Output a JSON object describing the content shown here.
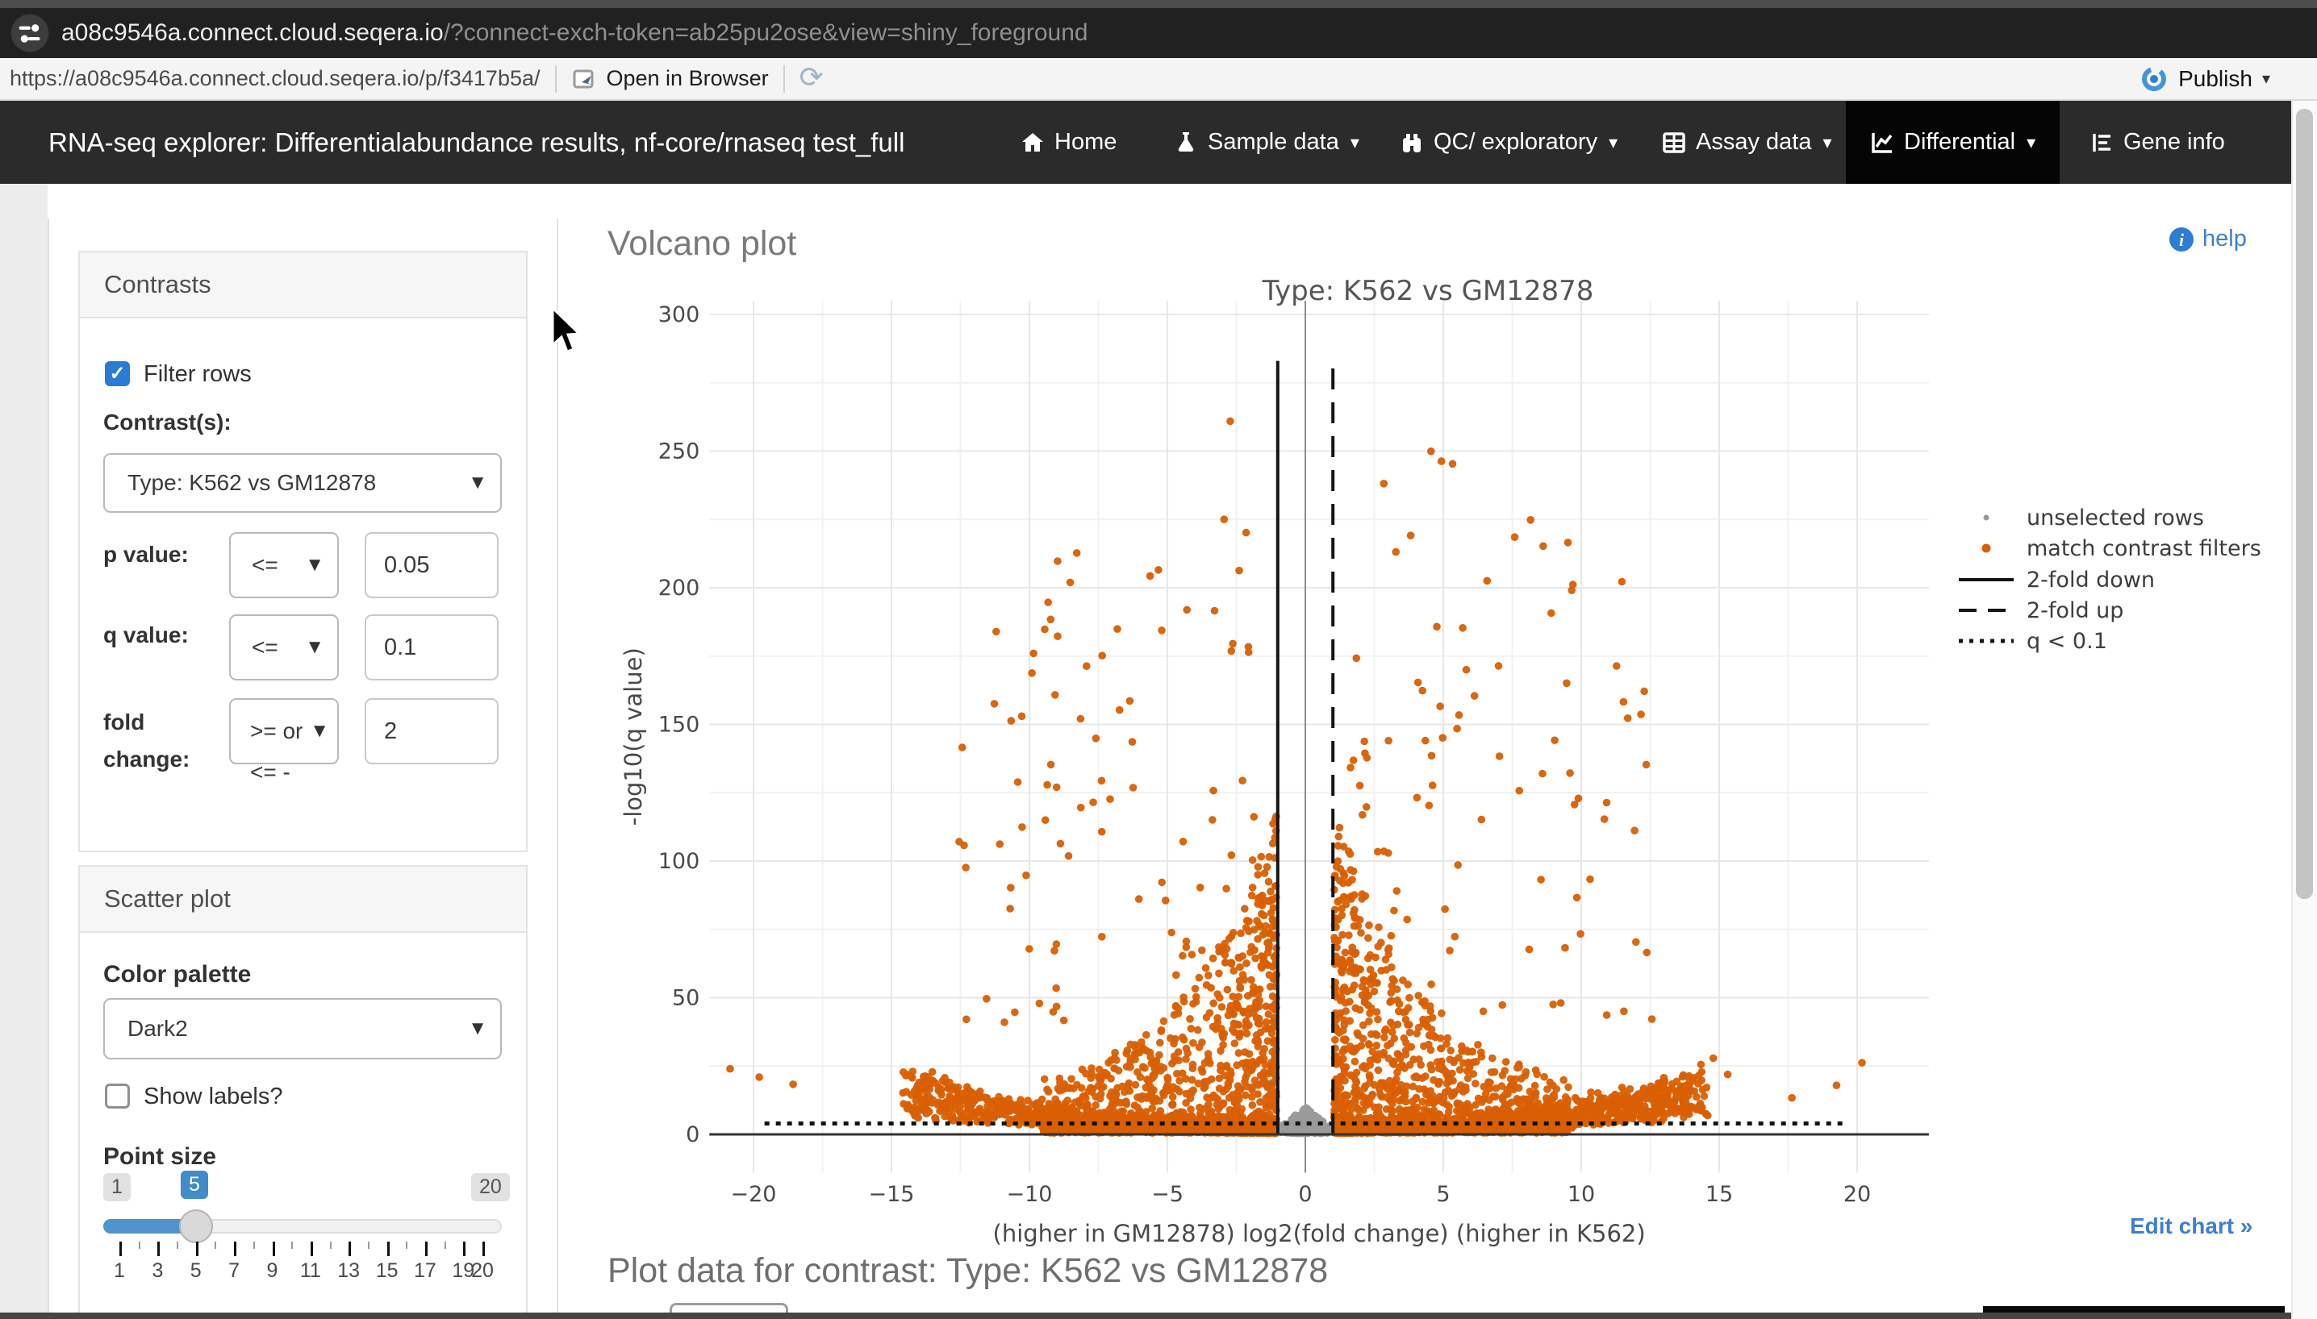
{
  "browser": {
    "url_host": "a08c9546a.connect.cloud.seqera.io",
    "url_params": "/?connect-exch-token=ab25pu2ose&view=shiny_foreground",
    "toolbar_url": "https://a08c9546a.connect.cloud.seqera.io/p/f3417b5a/",
    "open_in_browser_label": "Open in Browser",
    "publish_label": "Publish"
  },
  "navbar": {
    "title": "RNA-seq explorer: Differentialabundance results, nf-core/rnaseq test_full",
    "items": [
      {
        "label": "Home",
        "icon": "home-icon",
        "dropdown": false,
        "active": false
      },
      {
        "label": "Sample data",
        "icon": "flask-icon",
        "dropdown": true,
        "active": false
      },
      {
        "label": "QC/ exploratory",
        "icon": "binoculars-icon",
        "dropdown": true,
        "active": false
      },
      {
        "label": "Assay data",
        "icon": "table-icon",
        "dropdown": true,
        "active": false
      },
      {
        "label": "Differential",
        "icon": "chart-line-icon",
        "dropdown": true,
        "active": true
      },
      {
        "label": "Gene info",
        "icon": "list-icon",
        "dropdown": false,
        "active": false
      }
    ]
  },
  "sidebar": {
    "contrasts": {
      "title": "Contrasts",
      "filter_rows_label": "Filter rows",
      "filter_rows_checked": true,
      "contrast_label": "Contrast(s):",
      "contrast_value": "Type: K562 vs GM12878",
      "p_label": "p value:",
      "p_op": "<=",
      "p_value": "0.05",
      "q_label": "q value:",
      "q_op": "<=",
      "q_value": "0.1",
      "fc_label_line1": "fold",
      "fc_label_line2": "change:",
      "fc_op_line1": ">= or",
      "fc_op_line2": "<= -",
      "fc_value": "2"
    },
    "scatter": {
      "title": "Scatter plot",
      "palette_label": "Color palette",
      "palette_value": "Dark2",
      "show_labels_label": "Show labels?",
      "show_labels_checked": false,
      "point_size_label": "Point size",
      "slider": {
        "min": 1,
        "max": 20,
        "value": 5,
        "tick_label_values": [
          1,
          3,
          5,
          7,
          9,
          11,
          13,
          15,
          17,
          19,
          20
        ]
      }
    }
  },
  "main": {
    "heading": "Volcano plot",
    "help_label": "help",
    "edit_chart_label": "Edit chart »",
    "plot_data_heading": "Plot data for contrast: Type: K562 vs GM12878"
  },
  "chart_data": {
    "type": "scatter",
    "title": "Type: K562 vs GM12878",
    "xlabel": "(higher in GM12878)  log2(fold change)  (higher in K562)",
    "ylabel": "-log10(q value)",
    "xlim": [
      -21.6,
      22.6
    ],
    "ylim": [
      -14,
      305
    ],
    "xticks": [
      -20,
      -15,
      -10,
      -5,
      0,
      5,
      10,
      15,
      20
    ],
    "yticks": [
      0,
      50,
      100,
      150,
      200,
      250,
      300
    ],
    "grid": true,
    "legend_position": "right",
    "legend": [
      {
        "kind": "point",
        "label": "unselected rows",
        "color": "#9a9a9a",
        "size": "small"
      },
      {
        "kind": "point",
        "label": "match contrast filters",
        "color": "#d95f02",
        "size": "large"
      },
      {
        "kind": "line",
        "label": "2-fold down",
        "color": "#141414",
        "dash": "solid"
      },
      {
        "kind": "line",
        "label": "2-fold up",
        "color": "#141414",
        "dash": "dashed"
      },
      {
        "kind": "line",
        "label": "q < 0.1",
        "color": "#141414",
        "dash": "dotted"
      }
    ],
    "thresholds": {
      "fold_down_x": -1,
      "fold_up_x": 1,
      "q_line_y": 4,
      "line_top_y": 283
    },
    "series": [
      {
        "name": "match contrast filters",
        "color": "#d95f02",
        "approx_count": 4800,
        "description": "dense volcano wings, |log2FC| 1-21, -log10(q) 0-284, densest near baseline with curved rising arms"
      },
      {
        "name": "unselected rows",
        "color": "#9a9a9a",
        "approx_count": 260,
        "description": "small mound centered at log2FC 0, -log10(q) 0-10"
      }
    ],
    "gen": {
      "seed": 1337,
      "band": 1350,
      "mid": 950,
      "high": 95,
      "far": 5,
      "gray": 260,
      "orange_radius": 4.8,
      "gray_radius": 4.2
    }
  }
}
